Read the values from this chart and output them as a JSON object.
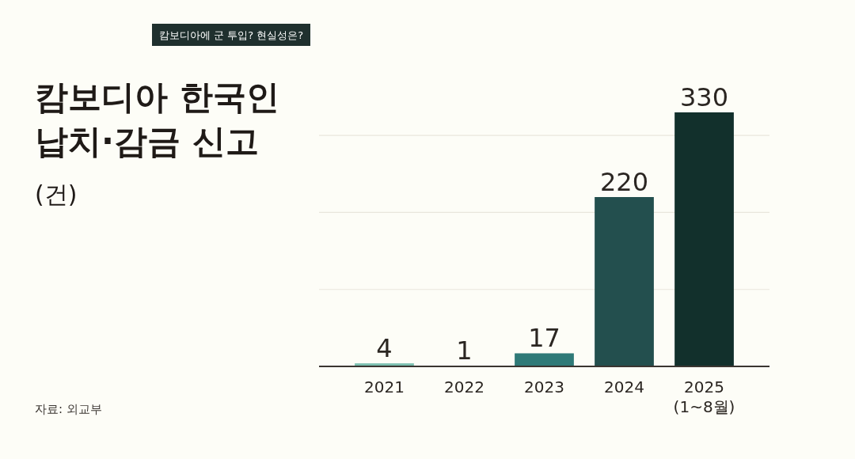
{
  "chart_data": {
    "type": "bar",
    "title": "캄보디아 한국인\n납치·감금 신고",
    "subtitle": "캄보디아에 군 투입? 현실성은?",
    "categories": [
      "2021",
      "2022",
      "2023",
      "2024",
      "2025\n(1~8월)"
    ],
    "values": [
      4,
      1,
      17,
      220,
      330
    ],
    "colors": [
      "#7cc0b0",
      "#4f8c84",
      "#2f7a78",
      "#234f4e",
      "#12302c"
    ],
    "yticks": [
      {
        "value": 0,
        "label": null
      },
      {
        "value": 100,
        "label": null
      },
      {
        "value": 200,
        "label": null
      },
      {
        "value": 300,
        "label": null
      }
    ],
    "grid": "y",
    "tick_labels": "x",
    "data_labels": true,
    "annotations": [
      "(건)",
      "자료: 외교부"
    ]
  }
}
